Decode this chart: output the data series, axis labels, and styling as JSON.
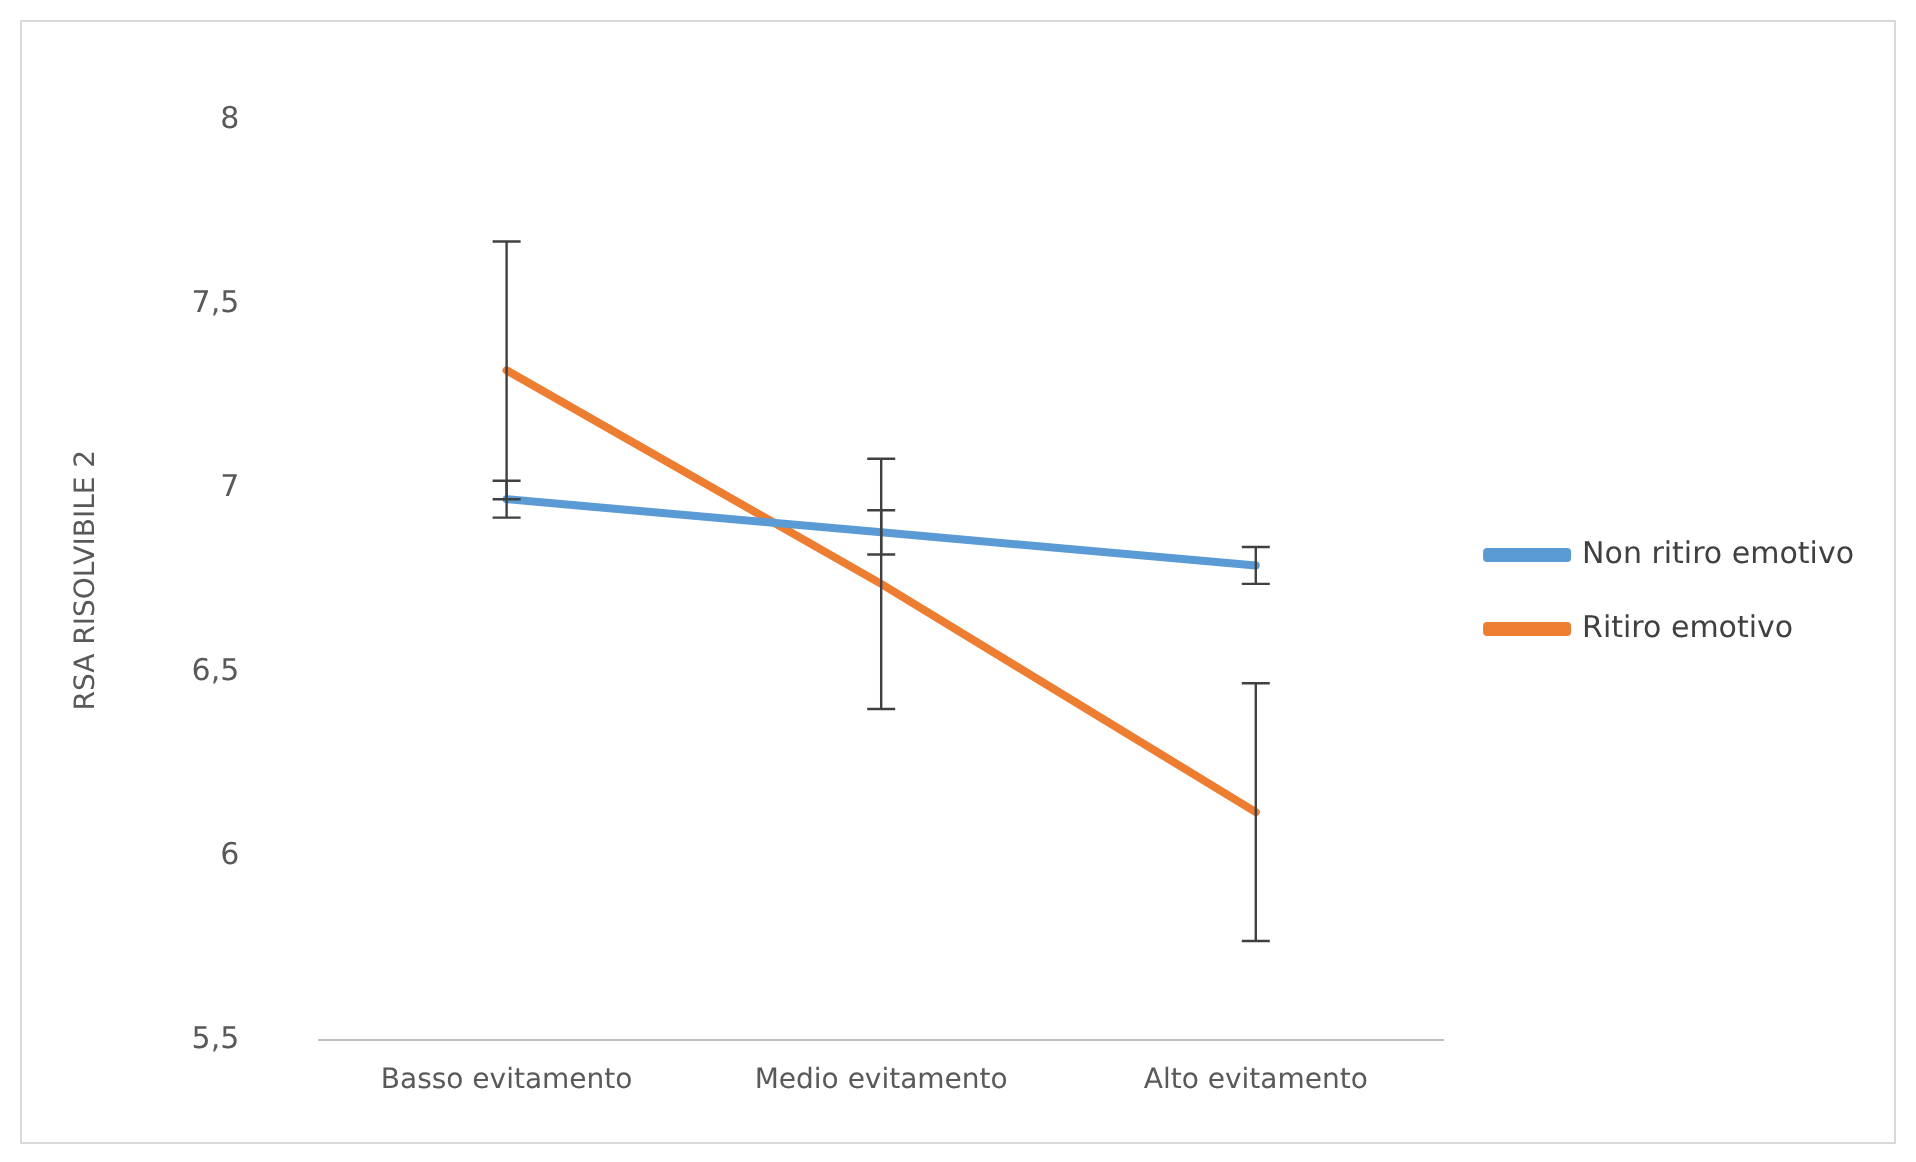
{
  "chart_data": {
    "type": "line",
    "ylabel": "RSA RISOLVIBILE 2",
    "categories": [
      "Basso evitamento",
      "Medio evitamento",
      "Alto evitamento"
    ],
    "series": [
      {
        "name": "Non ritiro emotivo",
        "color": "#5b9bd5",
        "values": [
          6.97,
          6.88,
          6.79
        ],
        "errors": [
          0.05,
          0.06,
          0.05
        ]
      },
      {
        "name": "Ritiro emotivo",
        "color": "#ed7d31",
        "values": [
          7.32,
          6.74,
          6.12
        ],
        "errors": [
          0.35,
          0.34,
          0.35
        ]
      }
    ],
    "ylim": [
      5.5,
      8
    ],
    "yticks": [
      {
        "value": 5.5,
        "label": "5,5"
      },
      {
        "value": 6,
        "label": "6"
      },
      {
        "value": 6.5,
        "label": "6,5"
      },
      {
        "value": 7,
        "label": "7"
      },
      {
        "value": 7.5,
        "label": "7,5"
      },
      {
        "value": 8,
        "label": "8"
      }
    ],
    "grid": false,
    "legend": "right"
  }
}
